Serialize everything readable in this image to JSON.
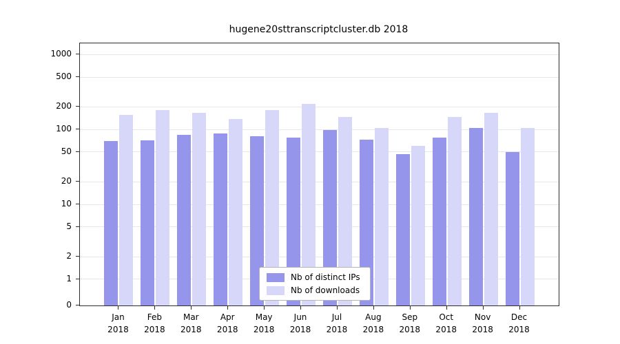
{
  "chart_data": {
    "type": "bar",
    "title": "hugene20sttranscriptcluster.db 2018",
    "categories": [
      "Jan",
      "Feb",
      "Mar",
      "Apr",
      "May",
      "Jun",
      "Jul",
      "Aug",
      "Sep",
      "Oct",
      "Nov",
      "Dec"
    ],
    "year": "2018",
    "series": [
      {
        "name": "Nb of distinct IPs",
        "color": "#9595ec",
        "values": [
          70,
          72,
          85,
          88,
          82,
          78,
          98,
          73,
          47,
          78,
          105,
          50
        ]
      },
      {
        "name": "Nb of downloads",
        "color": "#d7d7fa",
        "values": [
          155,
          180,
          168,
          138,
          180,
          220,
          148,
          105,
          60,
          148,
          168,
          104
        ]
      }
    ],
    "yticks": [
      0,
      1,
      2,
      5,
      10,
      20,
      50,
      100,
      200,
      500,
      1000
    ],
    "yscale": "log",
    "ylim": [
      0,
      1400
    ],
    "xlabel": "",
    "ylabel": "",
    "grid": true,
    "legend_position": "bottom-center",
    "colors": {
      "grid": "#e7e7e7",
      "axis": "#2b2b2b",
      "background": "#ffffff"
    }
  }
}
